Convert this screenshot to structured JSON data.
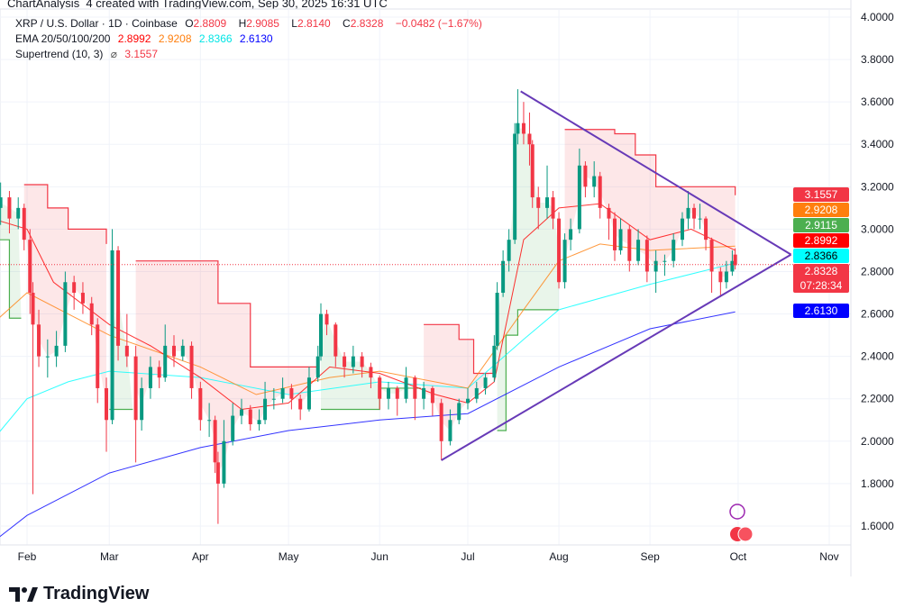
{
  "caption": "ChartAnalysis_4 created with TradingView.com, Sep 30, 2025 16:31 UTC",
  "legend": {
    "symbol": "XRP / U.S. Dollar · 1D · Coinbase",
    "open_label": "O",
    "open": "2.8809",
    "high_label": "H",
    "high": "2.9085",
    "low_label": "L",
    "low": "2.8140",
    "close_label": "C",
    "close": "2.8328",
    "change": "−0.0482 (−1.67%)",
    "ema_label": "EMA 20/50/100/200",
    "ema20": "2.8992",
    "ema50": "2.9208",
    "ema100": "2.8366",
    "ema200": "2.6130",
    "supertrend_label": "Supertrend (10, 3)",
    "supertrend_icon": "⌀",
    "supertrend": "3.1557"
  },
  "price_labels": [
    {
      "text": "3.1557",
      "bg": "#f23645",
      "fg": "#ffffff",
      "price": 3.1557
    },
    {
      "text": "2.9208",
      "bg": "#ff7f0e",
      "fg": "#ffffff",
      "price": 2.9208
    },
    {
      "text": "2.9115",
      "bg": "#4caf50",
      "fg": "#ffffff",
      "price": 2.9115
    },
    {
      "text": "2.8992",
      "bg": "#ff0000",
      "fg": "#ffffff",
      "price": 2.8992
    },
    {
      "text": "2.8366",
      "bg": "#00ffff",
      "fg": "#000000",
      "price": 2.8366
    },
    {
      "text": "2.8328",
      "sub": "07:28:34",
      "bg": "#f23645",
      "fg": "#ffffff",
      "price": 2.8328
    },
    {
      "text": "2.6130",
      "bg": "#0000ff",
      "fg": "#ffffff",
      "price": 2.613
    }
  ],
  "brand": "TradingView",
  "colors": {
    "up": "#089981",
    "down": "#f23645",
    "ema20": "#ff0000",
    "ema50": "#ff7f0e",
    "ema100": "#00ffff",
    "ema200": "#0000ff",
    "triangle": "#673ab7"
  },
  "chart_data": {
    "type": "candlestick",
    "ylim": [
      1.5,
      4.0
    ],
    "y_ticks": [
      "4.0000",
      "3.8000",
      "3.6000",
      "3.4000",
      "3.2000",
      "3.0000",
      "2.8000",
      "2.6000",
      "2.4000",
      "2.2000",
      "2.0000",
      "1.8000",
      "1.6000"
    ],
    "x_ticks": [
      [
        "Feb",
        "2025-02-01"
      ],
      [
        "Mar",
        "2025-03-01"
      ],
      [
        "Apr",
        "2025-04-01"
      ],
      [
        "May",
        "2025-05-01"
      ],
      [
        "Jun",
        "2025-06-01"
      ],
      [
        "Jul",
        "2025-07-01"
      ],
      [
        "Aug",
        "2025-08-01"
      ],
      [
        "Sep",
        "2025-09-01"
      ],
      [
        "Oct",
        "2025-10-01"
      ],
      [
        "Nov",
        "2025-11-01"
      ]
    ],
    "candles": [
      [
        "2025-01-20",
        3.0,
        3.2,
        2.95,
        3.1
      ],
      [
        "2025-01-23",
        3.1,
        3.22,
        3.02,
        3.15
      ],
      [
        "2025-01-26",
        3.15,
        3.18,
        2.98,
        3.05
      ],
      [
        "2025-01-29",
        3.05,
        3.15,
        3.0,
        3.1
      ],
      [
        "2025-01-31",
        3.1,
        3.12,
        2.9,
        2.95
      ],
      [
        "2025-02-02",
        2.95,
        3.0,
        2.6,
        2.7
      ],
      [
        "2025-02-03",
        2.7,
        2.75,
        1.75,
        2.55
      ],
      [
        "2025-02-05",
        2.55,
        2.62,
        2.35,
        2.4
      ],
      [
        "2025-02-08",
        2.4,
        2.48,
        2.3,
        2.4
      ],
      [
        "2025-02-11",
        2.4,
        2.52,
        2.35,
        2.45
      ],
      [
        "2025-02-14",
        2.45,
        2.8,
        2.42,
        2.75
      ],
      [
        "2025-02-17",
        2.75,
        2.78,
        2.62,
        2.7
      ],
      [
        "2025-02-20",
        2.7,
        2.75,
        2.6,
        2.65
      ],
      [
        "2025-02-23",
        2.65,
        2.68,
        2.5,
        2.55
      ],
      [
        "2025-02-25",
        2.55,
        2.58,
        2.18,
        2.25
      ],
      [
        "2025-02-28",
        2.25,
        2.3,
        1.95,
        2.1
      ],
      [
        "2025-03-02",
        2.1,
        3.0,
        2.08,
        2.9
      ],
      [
        "2025-03-04",
        2.9,
        2.92,
        2.38,
        2.45
      ],
      [
        "2025-03-07",
        2.45,
        2.6,
        2.35,
        2.4
      ],
      [
        "2025-03-10",
        2.4,
        2.45,
        1.9,
        2.1
      ],
      [
        "2025-03-12",
        2.1,
        2.3,
        2.05,
        2.25
      ],
      [
        "2025-03-15",
        2.25,
        2.4,
        2.2,
        2.35
      ],
      [
        "2025-03-18",
        2.35,
        2.38,
        2.25,
        2.3
      ],
      [
        "2025-03-20",
        2.3,
        2.55,
        2.28,
        2.45
      ],
      [
        "2025-03-23",
        2.45,
        2.5,
        2.35,
        2.4
      ],
      [
        "2025-03-26",
        2.4,
        2.48,
        2.38,
        2.45
      ],
      [
        "2025-03-29",
        2.45,
        2.47,
        2.2,
        2.25
      ],
      [
        "2025-04-01",
        2.25,
        2.28,
        2.05,
        2.1
      ],
      [
        "2025-04-04",
        2.1,
        2.18,
        2.02,
        2.1
      ],
      [
        "2025-04-06",
        2.1,
        2.12,
        1.85,
        1.9
      ],
      [
        "2025-04-07",
        1.9,
        1.95,
        1.61,
        1.8
      ],
      [
        "2025-04-09",
        1.8,
        2.1,
        1.78,
        2.0
      ],
      [
        "2025-04-12",
        2.0,
        2.18,
        1.98,
        2.12
      ],
      [
        "2025-04-15",
        2.12,
        2.2,
        2.08,
        2.15
      ],
      [
        "2025-04-18",
        2.15,
        2.17,
        2.05,
        2.08
      ],
      [
        "2025-04-21",
        2.08,
        2.15,
        2.05,
        2.1
      ],
      [
        "2025-04-23",
        2.1,
        2.28,
        2.08,
        2.2
      ],
      [
        "2025-04-26",
        2.2,
        2.25,
        2.15,
        2.2
      ],
      [
        "2025-04-29",
        2.2,
        2.3,
        2.18,
        2.25
      ],
      [
        "2025-05-02",
        2.25,
        2.27,
        2.15,
        2.2
      ],
      [
        "2025-05-05",
        2.2,
        2.22,
        2.1,
        2.15
      ],
      [
        "2025-05-08",
        2.15,
        2.35,
        2.14,
        2.3
      ],
      [
        "2025-05-11",
        2.3,
        2.45,
        2.28,
        2.4
      ],
      [
        "2025-05-12",
        2.4,
        2.65,
        2.38,
        2.6
      ],
      [
        "2025-05-14",
        2.6,
        2.62,
        2.5,
        2.55
      ],
      [
        "2025-05-17",
        2.55,
        2.56,
        2.35,
        2.4
      ],
      [
        "2025-05-20",
        2.4,
        2.42,
        2.3,
        2.35
      ],
      [
        "2025-05-23",
        2.35,
        2.45,
        2.32,
        2.4
      ],
      [
        "2025-05-26",
        2.4,
        2.42,
        2.3,
        2.35
      ],
      [
        "2025-05-29",
        2.35,
        2.37,
        2.25,
        2.3
      ],
      [
        "2025-06-01",
        2.3,
        2.31,
        2.15,
        2.2
      ],
      [
        "2025-06-04",
        2.2,
        2.28,
        2.15,
        2.25
      ],
      [
        "2025-06-07",
        2.25,
        2.26,
        2.12,
        2.2
      ],
      [
        "2025-06-10",
        2.2,
        2.35,
        2.18,
        2.3
      ],
      [
        "2025-06-13",
        2.3,
        2.31,
        2.1,
        2.2
      ],
      [
        "2025-06-16",
        2.2,
        2.28,
        2.15,
        2.25
      ],
      [
        "2025-06-19",
        2.25,
        2.26,
        2.12,
        2.18
      ],
      [
        "2025-06-22",
        2.18,
        2.2,
        1.91,
        2.0
      ],
      [
        "2025-06-25",
        2.0,
        2.15,
        1.98,
        2.1
      ],
      [
        "2025-06-28",
        2.1,
        2.2,
        2.08,
        2.18
      ],
      [
        "2025-07-01",
        2.18,
        2.25,
        2.15,
        2.2
      ],
      [
        "2025-07-04",
        2.2,
        2.28,
        2.18,
        2.25
      ],
      [
        "2025-07-07",
        2.25,
        2.32,
        2.22,
        2.3
      ],
      [
        "2025-07-10",
        2.3,
        2.5,
        2.28,
        2.45
      ],
      [
        "2025-07-11",
        2.45,
        2.75,
        2.43,
        2.7
      ],
      [
        "2025-07-13",
        2.7,
        2.9,
        2.68,
        2.85
      ],
      [
        "2025-07-15",
        2.85,
        3.0,
        2.8,
        2.95
      ],
      [
        "2025-07-17",
        2.95,
        3.5,
        2.93,
        3.45
      ],
      [
        "2025-07-18",
        3.45,
        3.66,
        3.4,
        3.5
      ],
      [
        "2025-07-20",
        3.5,
        3.6,
        3.4,
        3.45
      ],
      [
        "2025-07-22",
        3.45,
        3.55,
        3.3,
        3.4
      ],
      [
        "2025-07-23",
        3.4,
        3.42,
        3.1,
        3.15
      ],
      [
        "2025-07-25",
        3.15,
        3.2,
        3.0,
        3.1
      ],
      [
        "2025-07-28",
        3.1,
        3.3,
        3.05,
        3.15
      ],
      [
        "2025-07-30",
        3.15,
        3.18,
        3.0,
        3.05
      ],
      [
        "2025-08-01",
        3.05,
        3.08,
        2.72,
        2.75
      ],
      [
        "2025-08-03",
        2.75,
        2.98,
        2.72,
        2.95
      ],
      [
        "2025-08-05",
        2.95,
        3.05,
        2.9,
        3.0
      ],
      [
        "2025-08-08",
        3.0,
        3.38,
        2.98,
        3.3
      ],
      [
        "2025-08-10",
        3.3,
        3.32,
        3.15,
        3.2
      ],
      [
        "2025-08-13",
        3.2,
        3.32,
        3.15,
        3.25
      ],
      [
        "2025-08-15",
        3.25,
        3.27,
        3.05,
        3.1
      ],
      [
        "2025-08-18",
        3.1,
        3.12,
        2.95,
        3.05
      ],
      [
        "2025-08-20",
        3.05,
        3.08,
        2.85,
        2.9
      ],
      [
        "2025-08-22",
        2.9,
        3.05,
        2.88,
        3.0
      ],
      [
        "2025-08-25",
        3.0,
        3.02,
        2.8,
        2.85
      ],
      [
        "2025-08-28",
        2.85,
        3.0,
        2.83,
        2.95
      ],
      [
        "2025-08-31",
        2.95,
        2.97,
        2.75,
        2.8
      ],
      [
        "2025-09-03",
        2.8,
        2.9,
        2.7,
        2.85
      ],
      [
        "2025-09-06",
        2.85,
        2.88,
        2.78,
        2.85
      ],
      [
        "2025-09-09",
        2.85,
        2.98,
        2.82,
        2.95
      ],
      [
        "2025-09-12",
        2.95,
        3.08,
        2.92,
        3.05
      ],
      [
        "2025-09-14",
        3.05,
        3.18,
        3.0,
        3.1
      ],
      [
        "2025-09-16",
        3.1,
        3.12,
        3.0,
        3.05
      ],
      [
        "2025-09-18",
        3.05,
        3.12,
        3.0,
        3.05
      ],
      [
        "2025-09-20",
        3.05,
        3.06,
        2.9,
        2.95
      ],
      [
        "2025-09-22",
        2.95,
        2.96,
        2.7,
        2.8
      ],
      [
        "2025-09-25",
        2.8,
        2.82,
        2.68,
        2.75
      ],
      [
        "2025-09-27",
        2.75,
        2.85,
        2.72,
        2.8
      ],
      [
        "2025-09-29",
        2.8,
        2.9,
        2.78,
        2.85
      ],
      [
        "2025-09-30",
        2.88,
        2.91,
        2.81,
        2.83
      ]
    ],
    "ema": {
      "ema20": [
        [
          "2025-01-20",
          3.05
        ],
        [
          "2025-02-01",
          3.0
        ],
        [
          "2025-02-10",
          2.75
        ],
        [
          "2025-03-01",
          2.55
        ],
        [
          "2025-03-15",
          2.45
        ],
        [
          "2025-04-01",
          2.3
        ],
        [
          "2025-04-15",
          2.15
        ],
        [
          "2025-05-01",
          2.18
        ],
        [
          "2025-05-15",
          2.35
        ],
        [
          "2025-06-01",
          2.32
        ],
        [
          "2025-06-20",
          2.22
        ],
        [
          "2025-07-01",
          2.18
        ],
        [
          "2025-07-10",
          2.28
        ],
        [
          "2025-07-20",
          2.95
        ],
        [
          "2025-08-01",
          3.1
        ],
        [
          "2025-08-15",
          3.12
        ],
        [
          "2025-09-01",
          2.95
        ],
        [
          "2025-09-15",
          3.0
        ],
        [
          "2025-09-30",
          2.9
        ]
      ],
      "ema50": [
        [
          "2025-01-20",
          2.55
        ],
        [
          "2025-02-01",
          2.7
        ],
        [
          "2025-02-15",
          2.6
        ],
        [
          "2025-03-01",
          2.5
        ],
        [
          "2025-04-01",
          2.35
        ],
        [
          "2025-04-20",
          2.22
        ],
        [
          "2025-05-15",
          2.3
        ],
        [
          "2025-06-01",
          2.33
        ],
        [
          "2025-07-01",
          2.25
        ],
        [
          "2025-07-20",
          2.62
        ],
        [
          "2025-08-01",
          2.85
        ],
        [
          "2025-08-15",
          2.93
        ],
        [
          "2025-09-01",
          2.9
        ],
        [
          "2025-09-30",
          2.92
        ]
      ],
      "ema100": [
        [
          "2025-01-20",
          2.0
        ],
        [
          "2025-02-01",
          2.2
        ],
        [
          "2025-02-15",
          2.28
        ],
        [
          "2025-03-01",
          2.33
        ],
        [
          "2025-04-01",
          2.3
        ],
        [
          "2025-05-01",
          2.22
        ],
        [
          "2025-06-01",
          2.28
        ],
        [
          "2025-07-01",
          2.25
        ],
        [
          "2025-07-20",
          2.48
        ],
        [
          "2025-08-01",
          2.62
        ],
        [
          "2025-09-01",
          2.74
        ],
        [
          "2025-09-30",
          2.84
        ]
      ],
      "ema200": [
        [
          "2025-01-20",
          1.52
        ],
        [
          "2025-02-01",
          1.65
        ],
        [
          "2025-03-01",
          1.85
        ],
        [
          "2025-04-01",
          1.97
        ],
        [
          "2025-05-01",
          2.05
        ],
        [
          "2025-06-01",
          2.1
        ],
        [
          "2025-07-01",
          2.13
        ],
        [
          "2025-08-01",
          2.35
        ],
        [
          "2025-09-01",
          2.53
        ],
        [
          "2025-09-30",
          2.61
        ]
      ]
    },
    "supertrend": [
      {
        "trend": "up",
        "points": [
          [
            "2025-01-20",
            2.95
          ],
          [
            "2025-01-26",
            2.58
          ],
          [
            "2025-01-30",
            2.58
          ]
        ]
      },
      {
        "trend": "down",
        "points": [
          [
            "2025-01-31",
            3.21
          ],
          [
            "2025-02-06",
            3.21
          ],
          [
            "2025-02-08",
            3.1
          ],
          [
            "2025-02-15",
            3.0
          ],
          [
            "2025-02-28",
            2.93
          ]
        ]
      },
      {
        "trend": "up",
        "points": [
          [
            "2025-03-01",
            2.15
          ],
          [
            "2025-03-09",
            2.15
          ]
        ]
      },
      {
        "trend": "down",
        "points": [
          [
            "2025-03-10",
            2.85
          ],
          [
            "2025-04-05",
            2.85
          ],
          [
            "2025-04-07",
            2.65
          ],
          [
            "2025-04-18",
            2.35
          ],
          [
            "2025-05-11",
            2.35
          ]
        ]
      },
      {
        "trend": "up",
        "points": [
          [
            "2025-05-12",
            2.15
          ],
          [
            "2025-05-28",
            2.15
          ],
          [
            "2025-06-01",
            2.25
          ],
          [
            "2025-06-15",
            2.25
          ]
        ]
      },
      {
        "trend": "down",
        "points": [
          [
            "2025-06-16",
            2.55
          ],
          [
            "2025-06-28",
            2.48
          ],
          [
            "2025-07-03",
            2.32
          ],
          [
            "2025-07-10",
            2.32
          ]
        ]
      },
      {
        "trend": "up",
        "points": [
          [
            "2025-07-11",
            2.05
          ],
          [
            "2025-07-14",
            2.5
          ],
          [
            "2025-07-18",
            2.62
          ],
          [
            "2025-08-01",
            2.62
          ]
        ]
      },
      {
        "trend": "down",
        "points": [
          [
            "2025-08-03",
            3.47
          ],
          [
            "2025-08-20",
            3.45
          ],
          [
            "2025-08-27",
            3.35
          ],
          [
            "2025-09-03",
            3.2
          ],
          [
            "2025-09-30",
            3.16
          ]
        ]
      }
    ],
    "triangle": {
      "upper": [
        [
          "2025-07-19",
          3.65
        ],
        [
          "2025-10-19",
          2.88
        ]
      ],
      "lower": [
        [
          "2025-06-22",
          1.91
        ],
        [
          "2025-10-19",
          2.88
        ]
      ]
    }
  }
}
